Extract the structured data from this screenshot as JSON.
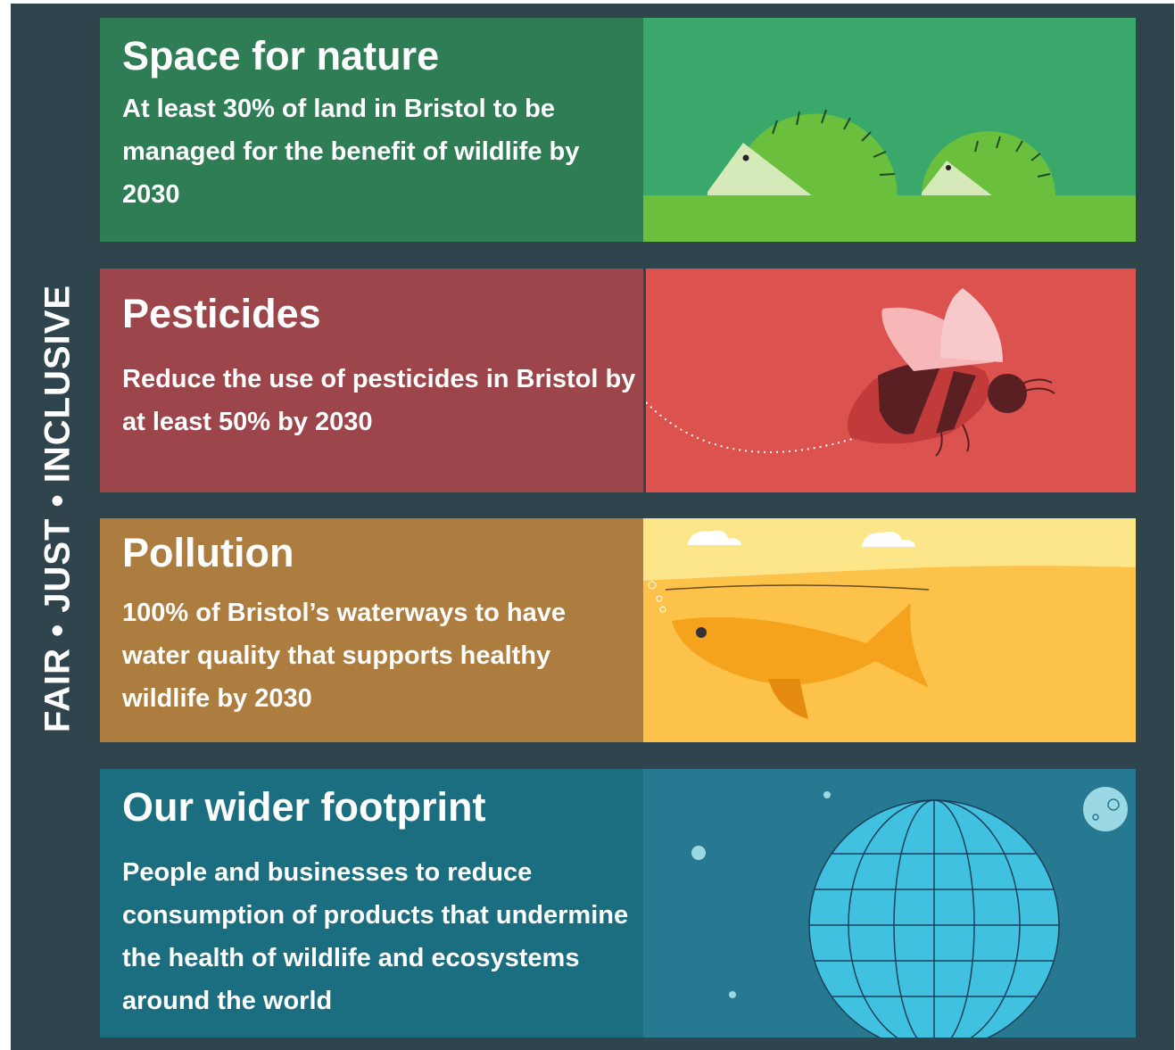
{
  "side_label": "FAIR • JUST • INCLUSIVE",
  "panels": [
    {
      "title": "Space for nature",
      "body": "At least 30% of land in Bristol to be managed for the benefit of wildlife by 2030"
    },
    {
      "title": "Pesticides",
      "body": "Reduce the use of pesticides in Bristol by at least 50% by 2030"
    },
    {
      "title": "Pollution",
      "body": "100% of Bristol’s waterways to have water quality that supports healthy wildlife by 2030"
    },
    {
      "title": "Our wider footprint",
      "body": "People and businesses to reduce consumption of products that undermine the health of wildlife and ecosystems around the world"
    }
  ]
}
